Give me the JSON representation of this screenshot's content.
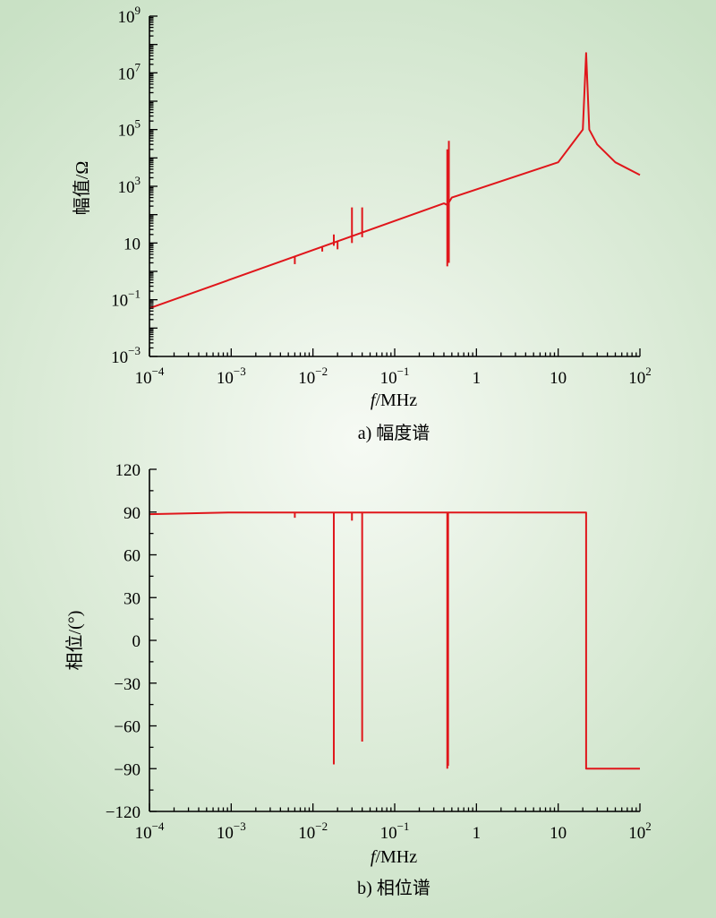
{
  "colors": {
    "series": "#e0161b",
    "axis": "#000000"
  },
  "chart_data": [
    {
      "type": "line",
      "caption": "a) 幅度谱",
      "xlabel_italic": "f",
      "xlabel_rest": "/MHz",
      "ylabel": "幅值/Ω",
      "xscale": "log",
      "yscale": "log",
      "xlim": [
        0.0001,
        100
      ],
      "ylim": [
        0.001,
        1000000000
      ],
      "grid": false,
      "x_ticks": [
        {
          "base": "10",
          "exp": "−4"
        },
        {
          "base": "10",
          "exp": "−3"
        },
        {
          "base": "10",
          "exp": "−2"
        },
        {
          "base": "10",
          "exp": "−1"
        },
        {
          "base": "1",
          "exp": ""
        },
        {
          "base": "10",
          "exp": ""
        },
        {
          "base": "10",
          "exp": "2"
        }
      ],
      "y_ticks": [
        {
          "base": "10",
          "exp": "−3"
        },
        {
          "base": "10",
          "exp": "−1"
        },
        {
          "base": "10",
          "exp": ""
        },
        {
          "base": "10",
          "exp": "3"
        },
        {
          "base": "10",
          "exp": "5"
        },
        {
          "base": "10",
          "exp": "7"
        },
        {
          "base": "10",
          "exp": "9"
        }
      ],
      "series": [
        {
          "x": [
            0.0001,
            0.4,
            0.44,
            0.5,
            10,
            20,
            22,
            24,
            30,
            50,
            100
          ],
          "y": [
            0.05,
            250,
            220,
            400,
            7000,
            100000,
            50000000,
            100000,
            30000,
            7000,
            2500
          ]
        }
      ],
      "spikes": [
        {
          "x": 0.006,
          "y1": 1.8,
          "y2": 3.2
        },
        {
          "x": 0.013,
          "y1": 5,
          "y2": 7
        },
        {
          "x": 0.018,
          "y1": 8,
          "y2": 20
        },
        {
          "x": 0.02,
          "y1": 6,
          "y2": 12
        },
        {
          "x": 0.03,
          "y1": 10,
          "y2": 180
        },
        {
          "x": 0.04,
          "y1": 16,
          "y2": 180
        },
        {
          "x": 0.44,
          "y1": 1.5,
          "y2": 20000
        },
        {
          "x": 0.46,
          "y1": 2,
          "y2": 40000
        }
      ]
    },
    {
      "type": "line",
      "caption": "b) 相位谱",
      "xlabel_italic": "f",
      "xlabel_rest": "/MHz",
      "ylabel": "相位/(°)",
      "xscale": "log",
      "yscale": "linear",
      "xlim": [
        0.0001,
        100
      ],
      "ylim": [
        -120,
        120
      ],
      "grid": false,
      "x_ticks": [
        {
          "base": "10",
          "exp": "−4"
        },
        {
          "base": "10",
          "exp": "−3"
        },
        {
          "base": "10",
          "exp": "−2"
        },
        {
          "base": "10",
          "exp": "−1"
        },
        {
          "base": "1",
          "exp": ""
        },
        {
          "base": "10",
          "exp": ""
        },
        {
          "base": "10",
          "exp": "2"
        }
      ],
      "y_ticks": [
        {
          "base": "120",
          "exp": ""
        },
        {
          "base": "90",
          "exp": ""
        },
        {
          "base": "60",
          "exp": ""
        },
        {
          "base": "30",
          "exp": ""
        },
        {
          "base": "0",
          "exp": ""
        },
        {
          "base": "−30",
          "exp": ""
        },
        {
          "base": "−60",
          "exp": ""
        },
        {
          "base": "−90",
          "exp": ""
        },
        {
          "base": "−120",
          "exp": ""
        }
      ],
      "series": [
        {
          "x": [
            0.0001,
            0.001,
            22,
            22,
            100
          ],
          "y": [
            88.5,
            89.7,
            89.7,
            -90,
            -90
          ]
        }
      ],
      "spikes": [
        {
          "x": 0.006,
          "y1": 86,
          "y2": 89.7
        },
        {
          "x": 0.018,
          "y1": -87,
          "y2": 89.7
        },
        {
          "x": 0.03,
          "y1": 84,
          "y2": 89.7
        },
        {
          "x": 0.04,
          "y1": -71,
          "y2": 89.7
        },
        {
          "x": 0.44,
          "y1": -90,
          "y2": 89.7
        },
        {
          "x": 0.45,
          "y1": -88,
          "y2": 89.7
        }
      ]
    }
  ]
}
